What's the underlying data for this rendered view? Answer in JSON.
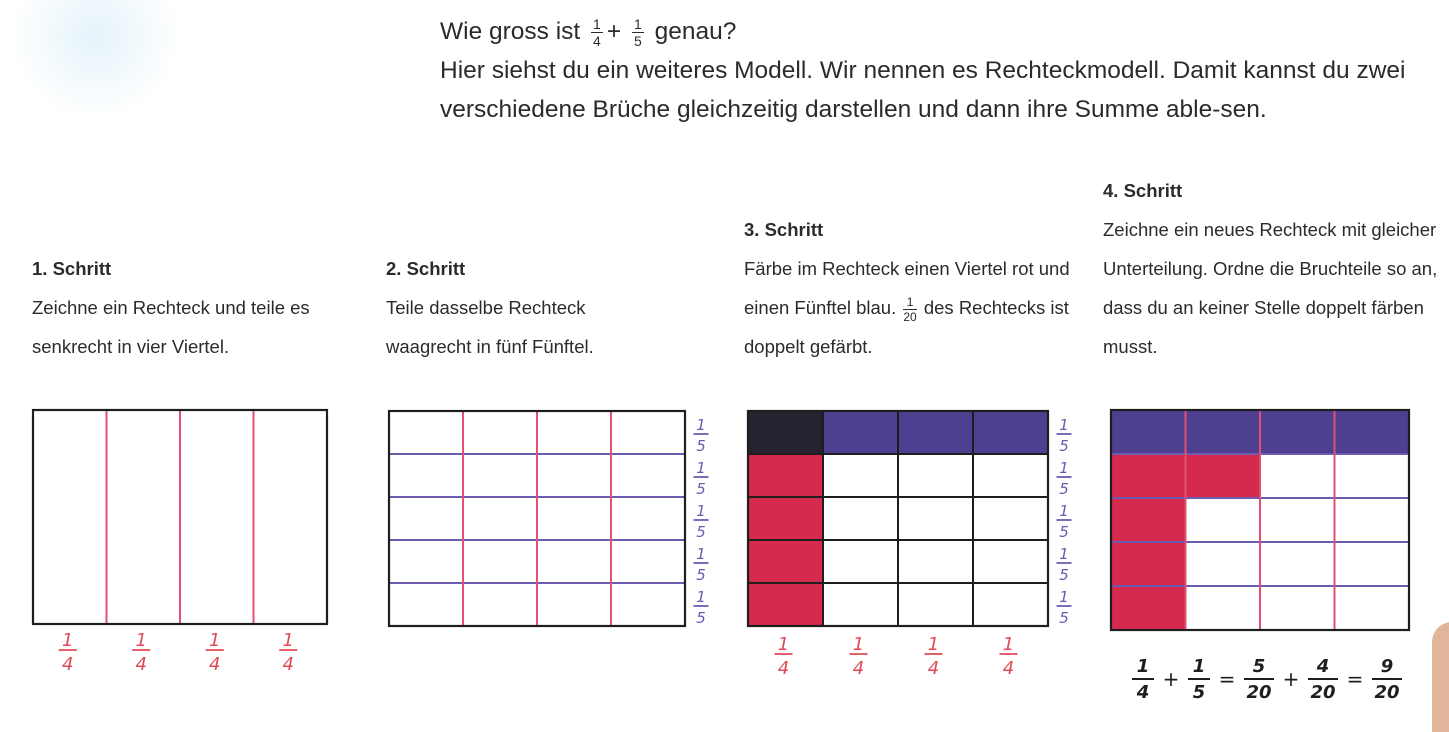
{
  "intro": {
    "question_pre": "Wie gross ist",
    "frac1_num": "1",
    "frac1_den": "4",
    "plus": "+",
    "frac2_num": "1",
    "frac2_den": "5",
    "question_post": "genau?",
    "paragraph": "Hier siehst du ein weiteres Modell. Wir nennen es Rechteckmodell. Damit kannst du zwei verschiedene Brüche gleichzeitig darstellen und dann ihre Summe able-sen."
  },
  "steps": [
    {
      "title": "1. Schritt",
      "text": "Zeichne ein Rechteck und teile es senkrecht in vier Viertel."
    },
    {
      "title": "2. Schritt",
      "text": "Teile dasselbe Rechteck waagrecht in fünf Fünftel."
    },
    {
      "title": "3. Schritt",
      "text_pre": "Färbe im Rechteck einen Viertel rot und einen Fünftel blau.",
      "frac_num": "1",
      "frac_den": "20",
      "text_post": "des Rechtecks ist doppelt gefärbt."
    },
    {
      "title": "4. Schritt",
      "text": "Zeichne ein neues Rechteck mit gleicher Unterteilung. Ordne die Bruchteile so an, dass du an keiner Stelle doppelt färben musst."
    }
  ],
  "labels": {
    "quarter_num": "1",
    "quarter_den": "4",
    "fifth_num": "1",
    "fifth_den": "5"
  },
  "equation": [
    {
      "num": "1",
      "den": "4"
    },
    {
      "op": "+"
    },
    {
      "num": "1",
      "den": "5"
    },
    {
      "op": "="
    },
    {
      "num": "5",
      "den": "20"
    },
    {
      "op": "+"
    },
    {
      "num": "4",
      "den": "20"
    },
    {
      "op": "="
    },
    {
      "num": "9",
      "den": "20"
    }
  ],
  "colors": {
    "red": "#d52a4e",
    "red_line": "#e05070",
    "blue": "#4e3f90",
    "purple_line": "#6f5ab0",
    "black": "#1e1e1e",
    "overlap": "#262330",
    "handwriting": "#e04a55"
  }
}
